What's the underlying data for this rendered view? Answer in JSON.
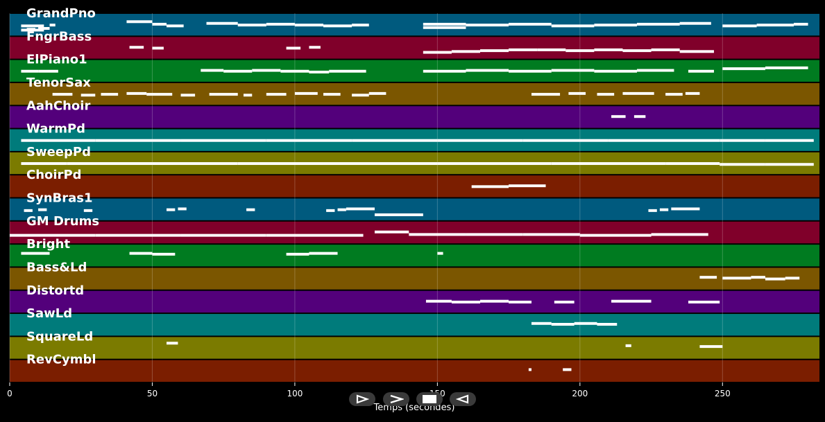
{
  "chart_data": {
    "type": "piano-roll",
    "title": "",
    "xlabel": "Temps (secondes)",
    "ylabel": "",
    "xlim": [
      0,
      284
    ],
    "x_ticks": [
      0,
      50,
      100,
      150,
      200,
      250
    ],
    "grid": true,
    "tracks": [
      {
        "name": "GrandPno",
        "color": "#005a7e",
        "notes": [
          [
            4,
            12,
            0.55
          ],
          [
            4,
            12,
            0.8
          ],
          [
            6,
            9,
            0.75
          ],
          [
            10,
            14,
            0.7
          ],
          [
            14,
            16,
            0.5
          ],
          [
            41,
            50,
            0.3
          ],
          [
            50,
            55,
            0.45
          ],
          [
            55,
            61,
            0.55
          ],
          [
            69,
            80,
            0.4
          ],
          [
            80,
            90,
            0.5
          ],
          [
            90,
            100,
            0.45
          ],
          [
            100,
            110,
            0.5
          ],
          [
            110,
            120,
            0.55
          ],
          [
            120,
            126,
            0.5
          ],
          [
            145,
            160,
            0.45
          ],
          [
            145,
            160,
            0.65
          ],
          [
            160,
            175,
            0.5
          ],
          [
            175,
            190,
            0.45
          ],
          [
            190,
            205,
            0.55
          ],
          [
            205,
            220,
            0.5
          ],
          [
            220,
            235,
            0.45
          ],
          [
            235,
            246,
            0.4
          ],
          [
            250,
            262,
            0.55
          ],
          [
            262,
            275,
            0.5
          ],
          [
            275,
            280,
            0.45
          ]
        ]
      },
      {
        "name": "FngrBass",
        "color": "#80002a",
        "notes": [
          [
            42,
            47,
            0.45
          ],
          [
            50,
            54,
            0.5
          ],
          [
            97,
            102,
            0.5
          ],
          [
            105,
            109,
            0.45
          ],
          [
            145,
            155,
            0.75
          ],
          [
            155,
            165,
            0.7
          ],
          [
            165,
            175,
            0.65
          ],
          [
            175,
            185,
            0.6
          ],
          [
            185,
            195,
            0.6
          ],
          [
            195,
            205,
            0.65
          ],
          [
            205,
            215,
            0.6
          ],
          [
            215,
            225,
            0.65
          ],
          [
            225,
            235,
            0.6
          ],
          [
            235,
            247,
            0.7
          ]
        ]
      },
      {
        "name": "ElPiano1",
        "color": "#007b20",
        "notes": [
          [
            4,
            10,
            0.5
          ],
          [
            10,
            17,
            0.5
          ],
          [
            67,
            75,
            0.45
          ],
          [
            75,
            85,
            0.5
          ],
          [
            85,
            95,
            0.45
          ],
          [
            95,
            105,
            0.5
          ],
          [
            105,
            112,
            0.55
          ],
          [
            112,
            125,
            0.5
          ],
          [
            145,
            160,
            0.5
          ],
          [
            160,
            175,
            0.45
          ],
          [
            175,
            190,
            0.5
          ],
          [
            190,
            205,
            0.45
          ],
          [
            205,
            220,
            0.5
          ],
          [
            220,
            233,
            0.45
          ],
          [
            238,
            247,
            0.5
          ],
          [
            250,
            265,
            0.35
          ],
          [
            265,
            280,
            0.3
          ]
        ]
      },
      {
        "name": "TenorSax",
        "color": "#7b5600",
        "notes": [
          [
            15,
            22,
            0.5
          ],
          [
            25,
            30,
            0.55
          ],
          [
            32,
            38,
            0.5
          ],
          [
            41,
            48,
            0.45
          ],
          [
            48,
            57,
            0.5
          ],
          [
            60,
            65,
            0.55
          ],
          [
            70,
            80,
            0.5
          ],
          [
            82,
            85,
            0.55
          ],
          [
            90,
            97,
            0.5
          ],
          [
            100,
            108,
            0.45
          ],
          [
            110,
            116,
            0.5
          ],
          [
            120,
            126,
            0.55
          ],
          [
            126,
            132,
            0.45
          ],
          [
            183,
            193,
            0.5
          ],
          [
            196,
            202,
            0.45
          ],
          [
            206,
            212,
            0.5
          ],
          [
            215,
            226,
            0.45
          ],
          [
            230,
            236,
            0.5
          ],
          [
            237,
            242,
            0.45
          ]
        ]
      },
      {
        "name": "AahChoir",
        "color": "#53007b",
        "notes": [
          [
            211,
            216,
            0.45
          ],
          [
            219,
            223,
            0.45
          ]
        ]
      },
      {
        "name": "WarmPd",
        "color": "#007b7b",
        "notes": [
          [
            4,
            14,
            0.5
          ],
          [
            14,
            30,
            0.5
          ],
          [
            30,
            60,
            0.5
          ],
          [
            60,
            90,
            0.5
          ],
          [
            90,
            120,
            0.5
          ],
          [
            120,
            150,
            0.5
          ],
          [
            150,
            180,
            0.5
          ],
          [
            180,
            210,
            0.5
          ],
          [
            210,
            249,
            0.5
          ],
          [
            249,
            265,
            0.5
          ],
          [
            265,
            282,
            0.5
          ]
        ]
      },
      {
        "name": "SweepPd",
        "color": "#7b7b00",
        "notes": [
          [
            4,
            20,
            0.5
          ],
          [
            20,
            50,
            0.5
          ],
          [
            50,
            80,
            0.5
          ],
          [
            80,
            110,
            0.5
          ],
          [
            110,
            150,
            0.5
          ],
          [
            150,
            190,
            0.5
          ],
          [
            190,
            230,
            0.5
          ],
          [
            230,
            249,
            0.5
          ],
          [
            249,
            265,
            0.55
          ],
          [
            265,
            282,
            0.55
          ]
        ]
      },
      {
        "name": "ChoirPd",
        "color": "#7b1e00",
        "notes": [
          [
            162,
            175,
            0.5
          ],
          [
            175,
            188,
            0.45
          ]
        ]
      },
      {
        "name": "SynBras1",
        "color": "#005a7e",
        "notes": [
          [
            5,
            8,
            0.55
          ],
          [
            10,
            13,
            0.5
          ],
          [
            26,
            29,
            0.55
          ],
          [
            55,
            58,
            0.5
          ],
          [
            59,
            62,
            0.45
          ],
          [
            83,
            86,
            0.5
          ],
          [
            111,
            114,
            0.55
          ],
          [
            115,
            118,
            0.5
          ],
          [
            118,
            128,
            0.45
          ],
          [
            128,
            145,
            0.8
          ],
          [
            224,
            227,
            0.55
          ],
          [
            228,
            231,
            0.5
          ],
          [
            232,
            242,
            0.45
          ]
        ]
      },
      {
        "name": "GM Drums",
        "color": "#80002a",
        "notes": [
          [
            0,
            30,
            0.65
          ],
          [
            30,
            60,
            0.65
          ],
          [
            60,
            90,
            0.65
          ],
          [
            90,
            124,
            0.65
          ],
          [
            128,
            140,
            0.45
          ],
          [
            140,
            160,
            0.6
          ],
          [
            160,
            180,
            0.6
          ],
          [
            180,
            200,
            0.6
          ],
          [
            200,
            225,
            0.65
          ],
          [
            225,
            245,
            0.6
          ]
        ]
      },
      {
        "name": "Bright",
        "color": "#007b20",
        "notes": [
          [
            4,
            14,
            0.35
          ],
          [
            42,
            50,
            0.35
          ],
          [
            50,
            58,
            0.4
          ],
          [
            97,
            105,
            0.4
          ],
          [
            105,
            115,
            0.35
          ],
          [
            150,
            152,
            0.35
          ]
        ]
      },
      {
        "name": "Bass&Ld",
        "color": "#7b5600",
        "notes": [
          [
            242,
            248,
            0.4
          ],
          [
            250,
            260,
            0.45
          ],
          [
            260,
            265,
            0.4
          ],
          [
            265,
            272,
            0.5
          ],
          [
            272,
            277,
            0.45
          ]
        ]
      },
      {
        "name": "Distortd",
        "color": "#53007b",
        "notes": [
          [
            146,
            155,
            0.45
          ],
          [
            155,
            165,
            0.5
          ],
          [
            165,
            175,
            0.45
          ],
          [
            175,
            183,
            0.5
          ],
          [
            191,
            198,
            0.5
          ],
          [
            211,
            225,
            0.45
          ],
          [
            238,
            249,
            0.5
          ]
        ]
      },
      {
        "name": "SawLd",
        "color": "#007b7b",
        "notes": [
          [
            183,
            190,
            0.4
          ],
          [
            190,
            198,
            0.45
          ],
          [
            198,
            206,
            0.4
          ],
          [
            206,
            213,
            0.45
          ]
        ]
      },
      {
        "name": "SquareLd",
        "color": "#7b7b00",
        "notes": [
          [
            55,
            59,
            0.2
          ],
          [
            216,
            218,
            0.35
          ],
          [
            242,
            250,
            0.4
          ]
        ]
      },
      {
        "name": "RevCymbl",
        "color": "#7b1e00",
        "notes": [
          [
            182,
            183,
            0.4
          ],
          [
            194,
            197,
            0.4
          ]
        ]
      }
    ]
  },
  "controls": [
    {
      "name": "play-button",
      "icon": "play-icon"
    },
    {
      "name": "forward-button",
      "icon": "forward-icon"
    },
    {
      "name": "stop-button",
      "icon": "stop-icon"
    },
    {
      "name": "rewind-button",
      "icon": "rewind-icon"
    }
  ]
}
